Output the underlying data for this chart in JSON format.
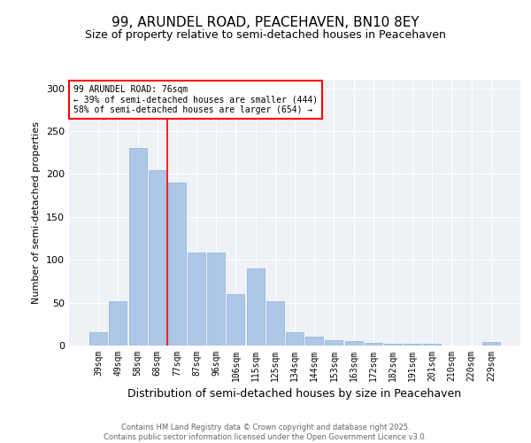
{
  "title": "99, ARUNDEL ROAD, PEACEHAVEN, BN10 8EY",
  "subtitle": "Size of property relative to semi-detached houses in Peacehaven",
  "xlabel": "Distribution of semi-detached houses by size in Peacehaven",
  "ylabel": "Number of semi-detached properties",
  "categories": [
    "39sqm",
    "49sqm",
    "58sqm",
    "68sqm",
    "77sqm",
    "87sqm",
    "96sqm",
    "106sqm",
    "115sqm",
    "125sqm",
    "134sqm",
    "144sqm",
    "153sqm",
    "163sqm",
    "172sqm",
    "182sqm",
    "191sqm",
    "201sqm",
    "210sqm",
    "220sqm",
    "229sqm"
  ],
  "values": [
    15,
    52,
    230,
    205,
    190,
    108,
    108,
    60,
    90,
    52,
    15,
    10,
    6,
    5,
    3,
    2,
    2,
    2,
    0,
    0,
    4
  ],
  "bar_color": "#aec6e8",
  "bar_edge_color": "#8ab4d8",
  "property_line_index": 4,
  "annotation_text_line1": "99 ARUNDEL ROAD: 76sqm",
  "annotation_text_line2": "← 39% of semi-detached houses are smaller (444)",
  "annotation_text_line3": "58% of semi-detached houses are larger (654) →",
  "ylim": [
    0,
    310
  ],
  "yticks": [
    0,
    50,
    100,
    150,
    200,
    250,
    300
  ],
  "footer_line1": "Contains HM Land Registry data © Crown copyright and database right 2025.",
  "footer_line2": "Contains public sector information licensed under the Open Government Licence v3.0.",
  "bg_color": "#eef2f7",
  "title_fontsize": 11,
  "subtitle_fontsize": 9,
  "axis_label_fontsize": 8,
  "tick_fontsize": 7,
  "footer_fontsize": 6
}
